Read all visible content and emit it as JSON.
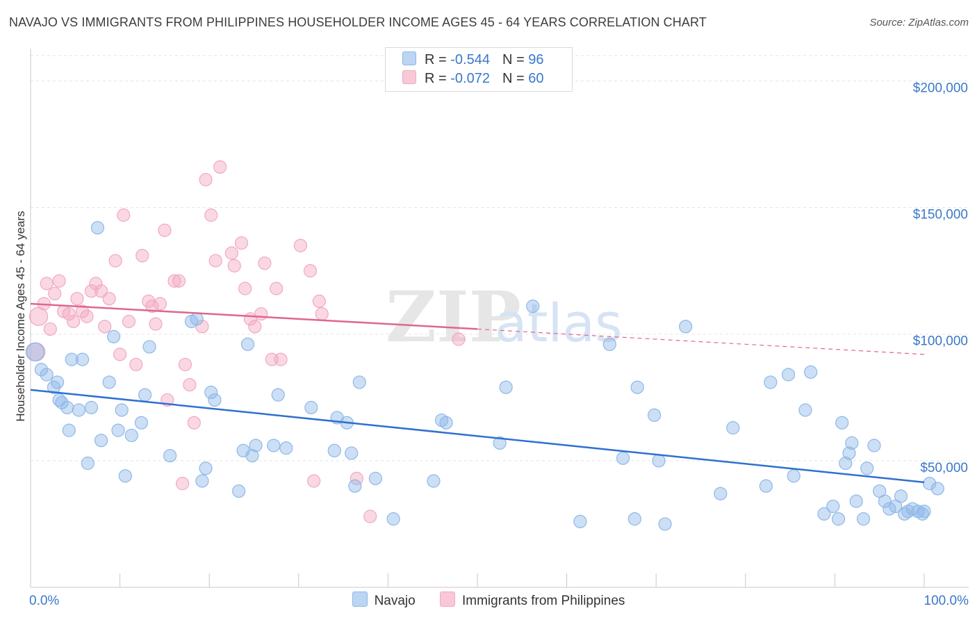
{
  "title": "NAVAJO VS IMMIGRANTS FROM PHILIPPINES HOUSEHOLDER INCOME AGES 45 - 64 YEARS CORRELATION CHART",
  "source": "Source: ZipAtlas.com",
  "watermark": {
    "zip": "ZIP",
    "atlas": "atlas"
  },
  "legend": {
    "rows": [
      {
        "r_label": "R = ",
        "r_value": "-0.544",
        "n_label": "N = ",
        "n_value": "96"
      },
      {
        "r_label": "R = ",
        "r_value": "-0.072",
        "n_label": "N = ",
        "n_value": "60"
      }
    ]
  },
  "chart_data": {
    "type": "scatter",
    "ylabel": "Householder Income Ages 45 - 64 years",
    "xlim": [
      0,
      100
    ],
    "ylim": [
      0,
      210000
    ],
    "y_ticks": [
      {
        "value": 50000,
        "label": "$50,000"
      },
      {
        "value": 100000,
        "label": "$100,000"
      },
      {
        "value": 150000,
        "label": "$150,000"
      },
      {
        "value": 200000,
        "label": "$200,000"
      }
    ],
    "x_tick_labels": {
      "left": "0.0%",
      "right": "100.0%"
    },
    "grid": true,
    "legend_placement": "top-center",
    "series": [
      {
        "name": "Navajo",
        "color": "#8db8e8",
        "line_color": "#2e70d0",
        "trend": {
          "x0": 0,
          "y0": 78000,
          "x1": 100,
          "y1": 41500,
          "dashed_from": null
        },
        "points": [
          [
            0.5,
            93000
          ],
          [
            1.2,
            86000
          ],
          [
            1.8,
            84000
          ],
          [
            2.6,
            79000
          ],
          [
            3.0,
            81000
          ],
          [
            3.2,
            74000
          ],
          [
            3.5,
            73000
          ],
          [
            4.1,
            71000
          ],
          [
            4.3,
            62000
          ],
          [
            4.6,
            90000
          ],
          [
            5.4,
            70000
          ],
          [
            5.8,
            90000
          ],
          [
            6.4,
            49000
          ],
          [
            6.8,
            71000
          ],
          [
            7.5,
            142000
          ],
          [
            7.9,
            58000
          ],
          [
            8.8,
            81000
          ],
          [
            9.3,
            99000
          ],
          [
            9.8,
            62000
          ],
          [
            10.2,
            70000
          ],
          [
            10.6,
            44000
          ],
          [
            11.3,
            60000
          ],
          [
            12.4,
            65000
          ],
          [
            12.8,
            76000
          ],
          [
            13.3,
            95000
          ],
          [
            15.6,
            52000
          ],
          [
            18.0,
            105000
          ],
          [
            18.6,
            106000
          ],
          [
            19.2,
            42000
          ],
          [
            19.6,
            47000
          ],
          [
            20.2,
            77000
          ],
          [
            20.6,
            74000
          ],
          [
            23.3,
            38000
          ],
          [
            23.8,
            54000
          ],
          [
            24.3,
            96000
          ],
          [
            24.8,
            52000
          ],
          [
            25.2,
            56000
          ],
          [
            27.2,
            56000
          ],
          [
            27.7,
            76000
          ],
          [
            28.6,
            55000
          ],
          [
            31.4,
            71000
          ],
          [
            34.0,
            54000
          ],
          [
            34.3,
            67000
          ],
          [
            35.4,
            65000
          ],
          [
            35.9,
            53000
          ],
          [
            36.3,
            40000
          ],
          [
            36.8,
            81000
          ],
          [
            38.6,
            43000
          ],
          [
            40.6,
            27000
          ],
          [
            45.1,
            42000
          ],
          [
            46.0,
            66000
          ],
          [
            46.5,
            65000
          ],
          [
            52.5,
            57000
          ],
          [
            53.2,
            79000
          ],
          [
            56.2,
            111000
          ],
          [
            61.5,
            26000
          ],
          [
            64.8,
            96000
          ],
          [
            66.3,
            51000
          ],
          [
            67.6,
            27000
          ],
          [
            67.9,
            79000
          ],
          [
            69.8,
            68000
          ],
          [
            70.3,
            50000
          ],
          [
            71.0,
            25000
          ],
          [
            73.3,
            103000
          ],
          [
            77.2,
            37000
          ],
          [
            78.6,
            63000
          ],
          [
            82.3,
            40000
          ],
          [
            82.8,
            81000
          ],
          [
            84.8,
            84000
          ],
          [
            85.4,
            44000
          ],
          [
            86.7,
            70000
          ],
          [
            87.3,
            85000
          ],
          [
            88.8,
            29000
          ],
          [
            89.8,
            32000
          ],
          [
            90.4,
            27000
          ],
          [
            90.8,
            65000
          ],
          [
            91.2,
            49000
          ],
          [
            91.6,
            53000
          ],
          [
            91.9,
            57000
          ],
          [
            92.4,
            34000
          ],
          [
            93.2,
            27000
          ],
          [
            93.6,
            47000
          ],
          [
            94.4,
            56000
          ],
          [
            95.0,
            38000
          ],
          [
            95.6,
            34000
          ],
          [
            96.1,
            31000
          ],
          [
            96.8,
            32000
          ],
          [
            97.4,
            36000
          ],
          [
            97.8,
            29000
          ],
          [
            98.2,
            30000
          ],
          [
            98.7,
            31000
          ],
          [
            99.3,
            30000
          ],
          [
            99.8,
            29000
          ],
          [
            100.0,
            30000
          ],
          [
            100.6,
            41000
          ],
          [
            101.5,
            39000
          ]
        ]
      },
      {
        "name": "Immigrants from Philippines",
        "color": "#f2a8c0",
        "line_color": "#e0668c",
        "trend": {
          "x0": 0,
          "y0": 112000,
          "x1": 100,
          "y1": 92000,
          "dashed_from": 50
        },
        "points": [
          [
            0.6,
            93000
          ],
          [
            0.9,
            107000
          ],
          [
            1.5,
            112000
          ],
          [
            1.8,
            120000
          ],
          [
            2.2,
            102000
          ],
          [
            2.7,
            116000
          ],
          [
            3.2,
            121000
          ],
          [
            3.7,
            109000
          ],
          [
            4.3,
            108000
          ],
          [
            4.8,
            105000
          ],
          [
            5.2,
            114000
          ],
          [
            5.8,
            109000
          ],
          [
            6.3,
            107000
          ],
          [
            6.8,
            117000
          ],
          [
            7.3,
            120000
          ],
          [
            7.9,
            117000
          ],
          [
            8.3,
            103000
          ],
          [
            8.8,
            114000
          ],
          [
            9.5,
            129000
          ],
          [
            10.0,
            92000
          ],
          [
            10.4,
            147000
          ],
          [
            11.0,
            105000
          ],
          [
            11.8,
            88000
          ],
          [
            12.5,
            131000
          ],
          [
            13.2,
            113000
          ],
          [
            13.6,
            111000
          ],
          [
            14.0,
            104000
          ],
          [
            14.5,
            112000
          ],
          [
            15.0,
            141000
          ],
          [
            15.3,
            74000
          ],
          [
            16.1,
            121000
          ],
          [
            16.6,
            121000
          ],
          [
            17.0,
            41000
          ],
          [
            17.3,
            88000
          ],
          [
            17.8,
            80000
          ],
          [
            18.3,
            65000
          ],
          [
            19.2,
            103000
          ],
          [
            19.6,
            161000
          ],
          [
            20.2,
            147000
          ],
          [
            20.7,
            129000
          ],
          [
            21.2,
            166000
          ],
          [
            22.5,
            132000
          ],
          [
            22.8,
            127000
          ],
          [
            23.6,
            136000
          ],
          [
            24.0,
            118000
          ],
          [
            24.6,
            106000
          ],
          [
            25.1,
            103000
          ],
          [
            25.8,
            108000
          ],
          [
            26.2,
            128000
          ],
          [
            27.0,
            90000
          ],
          [
            27.5,
            118000
          ],
          [
            28.0,
            90000
          ],
          [
            30.2,
            135000
          ],
          [
            31.3,
            125000
          ],
          [
            31.7,
            42000
          ],
          [
            32.3,
            113000
          ],
          [
            32.6,
            108000
          ],
          [
            36.5,
            43000
          ],
          [
            38.0,
            28000
          ],
          [
            47.9,
            98000
          ]
        ]
      }
    ]
  }
}
